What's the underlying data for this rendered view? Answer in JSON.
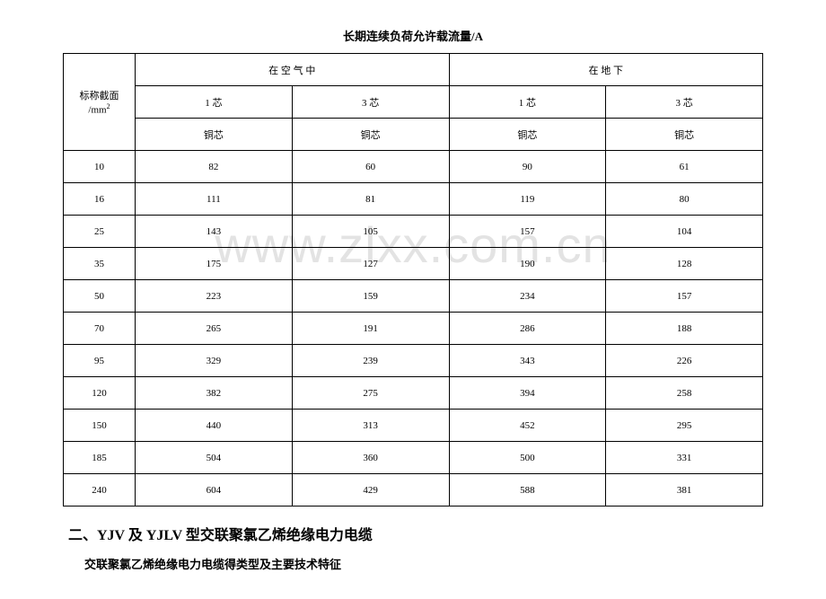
{
  "title": "长期连续负荷允许载流量/A",
  "watermark": "www.zlxx.com.cn",
  "table": {
    "rowHeaderLabel": "标称截面\n/mm²",
    "groupHeaders": [
      "在 空 气 中",
      "在 地 下"
    ],
    "subHeaders": [
      "1 芯",
      "3 芯",
      "1 芯",
      "3 芯"
    ],
    "materialHeaders": [
      "铜芯",
      "铜芯",
      "铜芯",
      "铜芯"
    ],
    "rows": [
      {
        "label": "10",
        "values": [
          "82",
          "60",
          "90",
          "61"
        ]
      },
      {
        "label": "16",
        "values": [
          "111",
          "81",
          "119",
          "80"
        ]
      },
      {
        "label": "25",
        "values": [
          "143",
          "105",
          "157",
          "104"
        ]
      },
      {
        "label": "35",
        "values": [
          "175",
          "127",
          "190",
          "128"
        ]
      },
      {
        "label": "50",
        "values": [
          "223",
          "159",
          "234",
          "157"
        ]
      },
      {
        "label": "70",
        "values": [
          "265",
          "191",
          "286",
          "188"
        ]
      },
      {
        "label": "95",
        "values": [
          "329",
          "239",
          "343",
          "226"
        ]
      },
      {
        "label": "120",
        "values": [
          "382",
          "275",
          "394",
          "258"
        ]
      },
      {
        "label": "150",
        "values": [
          "440",
          "313",
          "452",
          "295"
        ]
      },
      {
        "label": "185",
        "values": [
          "504",
          "360",
          "500",
          "331"
        ]
      },
      {
        "label": "240",
        "values": [
          "604",
          "429",
          "588",
          "381"
        ]
      }
    ]
  },
  "sectionHeading": "二、YJV 及 YJLV 型交联聚氯乙烯绝缘电力电缆",
  "subHeading": "交联聚氯乙烯绝缘电力电缆得类型及主要技术特征"
}
